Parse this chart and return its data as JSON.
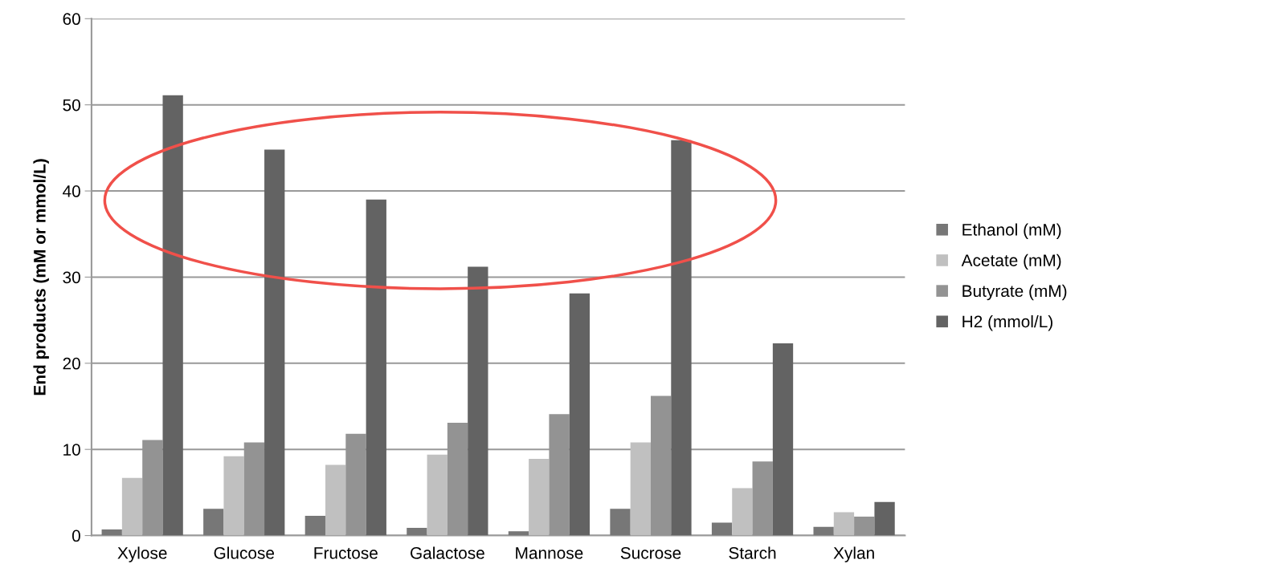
{
  "chart_data": {
    "type": "bar",
    "ylabel": "End products (mM or mmol/L)",
    "categories": [
      "Xylose",
      "Glucose",
      "Fructose",
      "Galactose",
      "Mannose",
      "Sucrose",
      "Starch",
      "Xylan"
    ],
    "series": [
      {
        "name": "Ethanol (mM)",
        "color": "#777777",
        "values": [
          0.7,
          3.1,
          2.3,
          0.9,
          0.5,
          3.1,
          1.5,
          1.0
        ]
      },
      {
        "name": "Acetate (mM)",
        "color": "#c0c0c0",
        "values": [
          6.7,
          9.2,
          8.2,
          9.4,
          8.9,
          10.8,
          5.5,
          2.7
        ]
      },
      {
        "name": "Butyrate (mM)",
        "color": "#939393",
        "values": [
          11.1,
          10.8,
          11.8,
          13.1,
          14.1,
          16.2,
          8.6,
          2.2
        ]
      },
      {
        "name": "H2 (mmol/L)",
        "color": "#636363",
        "values": [
          51.1,
          44.8,
          39.0,
          31.2,
          28.1,
          45.9,
          22.3,
          3.9
        ]
      }
    ],
    "ylim": [
      0,
      60
    ],
    "yticks": [
      0,
      10,
      20,
      30,
      40,
      50,
      60
    ],
    "grid": "y",
    "legend": "right"
  }
}
